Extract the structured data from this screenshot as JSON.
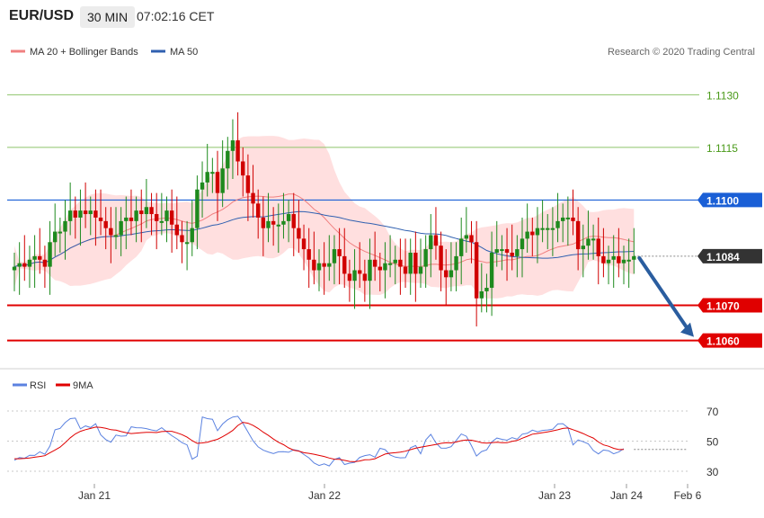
{
  "header": {
    "symbol": "EUR/USD",
    "timeframe": "30 MIN",
    "time": "07:02:16 CET"
  },
  "legend": {
    "ma20_label": "MA 20 + Bollinger Bands",
    "ma50_label": "MA 50",
    "rsi_label": "RSI",
    "rsi_ma_label": "9MA"
  },
  "copyright": "Research © 2020 Trading Central",
  "colors": {
    "ma20": "#f08080",
    "ma50": "#3060b0",
    "band_fill": "#ffd9d9",
    "candle_up": "#1e8a1e",
    "candle_down": "#d00000",
    "resistance": "#1a5fd6",
    "support": "#e00000",
    "target_line": "#8dc46a",
    "rsi": "#5b82e0",
    "rsi_ma": "#e00000",
    "arrow": "#2a5d9f",
    "last_price": "#333333"
  },
  "chart_data": [
    {
      "type": "candlestick",
      "ylim": [
        1.1054,
        1.1137
      ],
      "x_labels": [
        "Jan 21",
        "Jan 22",
        "Jan 23",
        "Jan 24",
        "Feb 6"
      ],
      "price_levels": [
        {
          "value": 1.113,
          "label": "1.1130",
          "kind": "target"
        },
        {
          "value": 1.1115,
          "label": "1.1115",
          "kind": "target"
        },
        {
          "value": 1.11,
          "label": "1.1100",
          "kind": "resistance"
        },
        {
          "value": 1.1084,
          "label": "1.1084",
          "kind": "last"
        },
        {
          "value": 1.107,
          "label": "1.1070",
          "kind": "support"
        },
        {
          "value": 1.106,
          "label": "1.1060",
          "kind": "support"
        }
      ],
      "closes": [
        1.1081,
        1.1082,
        1.1081,
        1.1083,
        1.1084,
        1.1083,
        1.1081,
        1.1088,
        1.1091,
        1.1091,
        1.1094,
        1.1097,
        1.1095,
        1.1097,
        1.1096,
        1.1097,
        1.1095,
        1.1094,
        1.1092,
        1.109,
        1.109,
        1.1094,
        1.1095,
        1.1094,
        1.1097,
        1.1096,
        1.1098,
        1.1096,
        1.1094,
        1.1094,
        1.1097,
        1.1093,
        1.109,
        1.1088,
        1.1088,
        1.1092,
        1.1103,
        1.1105,
        1.1108,
        1.1108,
        1.1102,
        1.1109,
        1.1114,
        1.1117,
        1.1111,
        1.1107,
        1.1102,
        1.1099,
        1.1095,
        1.1092,
        1.1094,
        1.1093,
        1.1093,
        1.1094,
        1.1096,
        1.1092,
        1.1089,
        1.1086,
        1.1083,
        1.108,
        1.1082,
        1.1081,
        1.1082,
        1.1086,
        1.1084,
        1.1079,
        1.1077,
        1.108,
        1.1079,
        1.1077,
        1.1083,
        1.1081,
        1.108,
        1.1082,
        1.1082,
        1.1083,
        1.1081,
        1.1079,
        1.1085,
        1.1079,
        1.1081,
        1.1086,
        1.109,
        1.1087,
        1.108,
        1.1078,
        1.108,
        1.1084,
        1.1089,
        1.109,
        1.1088,
        1.1072,
        1.1074,
        1.1075,
        1.1085,
        1.1086,
        1.1086,
        1.1085,
        1.1084,
        1.1086,
        1.1089,
        1.1091,
        1.109,
        1.1092,
        1.1092,
        1.1092,
        1.1092,
        1.1094,
        1.1095,
        1.1095,
        1.1094,
        1.1086,
        1.1087,
        1.1089,
        1.1089,
        1.1084,
        1.1082,
        1.1083,
        1.1084,
        1.1082,
        1.1083,
        1.1083,
        1.1084
      ]
    },
    {
      "type": "line",
      "title": "RSI",
      "ylim": [
        25,
        75
      ],
      "yticks": [
        30,
        50,
        70
      ],
      "series": [
        {
          "name": "RSI",
          "values": [
            37.3,
            39.1,
            38.6,
            40.6,
            40.5,
            42.9,
            41.3,
            46.8,
            57.5,
            58.4,
            62.3,
            64.9,
            65.3,
            58.2,
            60.1,
            59.0,
            61.5,
            54.1,
            51.0,
            49.3,
            54.0,
            53.3,
            53.5,
            59.5,
            58.9,
            58.8,
            58.3,
            57.4,
            56.8,
            58.9,
            56.2,
            53.6,
            51.5,
            49.0,
            47.5,
            38.0,
            40.0,
            66.0,
            64.9,
            64.5,
            56.9,
            61.4,
            64.2,
            66.0,
            66.5,
            61.8,
            56.0,
            50.2,
            46.2,
            44.0,
            42.8,
            41.7,
            42.9,
            43.0,
            42.6,
            44.3,
            43.6,
            41.1,
            38.9,
            35.5,
            33.8,
            34.9,
            33.5,
            37.8,
            39.0,
            34.5,
            35.4,
            35.9,
            39.2,
            40.4,
            41.0,
            39.3,
            45.2,
            44.3,
            40.8,
            39.4,
            38.9,
            39.0,
            45.6,
            47.1,
            41.6,
            50.8,
            54.5,
            48.8,
            45.4,
            45.3,
            46.3,
            50.5,
            54.7,
            53.2,
            47.0,
            40.1,
            43.1,
            44.2,
            49.5,
            52.0,
            51.2,
            50.6,
            52.3,
            51.3,
            54.6,
            55.2,
            57.3,
            56.2,
            57.1,
            57.4,
            57.9,
            61.4,
            61.6,
            58.9,
            47.5,
            50.8,
            49.6,
            48.2,
            43.8,
            41.5,
            44.1,
            43.6,
            41.6,
            42.8,
            45.0
          ]
        },
        {
          "name": "9MA",
          "values": [
            38.3,
            38.3,
            38.5,
            38.8,
            39.3,
            39.8,
            40.3,
            42.3,
            44.1,
            46.0,
            48.9,
            52.2,
            54.8,
            56.5,
            57.6,
            58.4,
            59.3,
            59.1,
            58.5,
            57.6,
            57.3,
            56.3,
            55.6,
            55.0,
            55.3,
            55.6,
            55.8,
            55.8,
            55.7,
            56.3,
            56.5,
            56.5,
            55.5,
            54.3,
            52.6,
            50.3,
            48.5,
            48.8,
            49.3,
            50.3,
            51.2,
            52.9,
            54.9,
            57.1,
            60.4,
            62.5,
            61.9,
            60.4,
            58.4,
            55.9,
            53.8,
            51.4,
            49.2,
            47.6,
            45.5,
            44.0,
            43.4,
            42.3,
            41.9,
            41.3,
            40.5,
            39.8,
            38.8,
            38.0,
            37.9,
            37.2,
            36.5,
            36.3,
            36.8,
            37.6,
            37.7,
            38.3,
            39.9,
            41.4,
            42.0,
            42.3,
            42.7,
            43.3,
            44.3,
            45.3,
            46.0,
            46.6,
            47.2,
            47.8,
            48.5,
            49.0,
            48.8,
            49.4,
            50.3,
            50.8,
            50.6,
            49.9,
            49.0,
            48.6,
            48.9,
            49.3,
            49.0,
            48.9,
            49.8,
            50.4,
            51.9,
            53.2,
            54.6,
            55.1,
            55.6,
            56.1,
            56.8,
            57.5,
            58.4,
            58.7,
            57.6,
            56.3,
            55.0,
            53.4,
            52.0,
            49.4,
            47.5,
            46.6,
            45.2,
            44.4,
            44.5
          ]
        }
      ]
    }
  ]
}
